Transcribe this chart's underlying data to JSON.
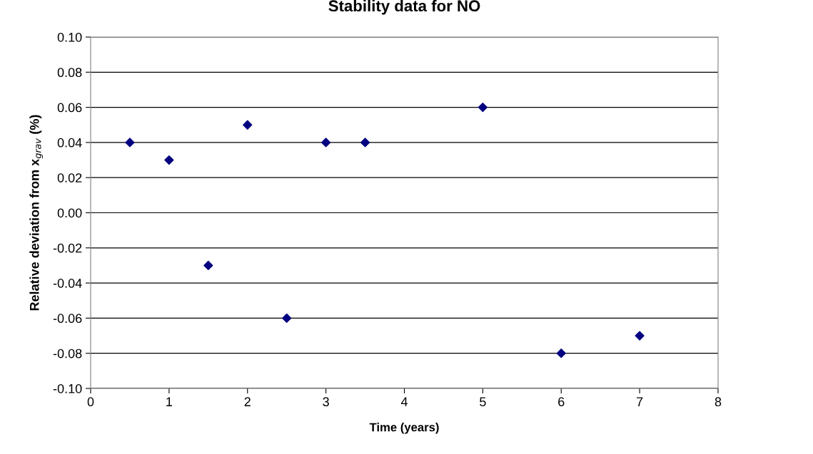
{
  "chart_data": {
    "type": "scatter",
    "title": "Stability data for NO",
    "xlabel": "Time (years)",
    "ylabel": "Relative deviation from x$_{grav}$ (%)",
    "x": [
      0.5,
      1,
      1.5,
      2,
      2.5,
      3,
      3.5,
      5,
      6,
      7
    ],
    "series": [
      {
        "color": "#000080",
        "values": [
          0.04,
          0.03,
          -0.03,
          0.05,
          -0.06,
          0.04,
          0.04,
          0.06,
          -0.08,
          -0.07
        ]
      }
    ],
    "xlim": [
      0,
      8
    ],
    "xticks": [
      0,
      1,
      2,
      3,
      4,
      5,
      6,
      7,
      8
    ],
    "ylim": [
      -0.1,
      0.1
    ],
    "yticks": [
      {
        "value": -0.1,
        "label": "-0.10"
      },
      {
        "value": -0.08,
        "label": "-0.08"
      },
      {
        "value": -0.06,
        "label": "-0.06"
      },
      {
        "value": -0.04,
        "label": "-0.04"
      },
      {
        "value": -0.02,
        "label": "-0.02"
      },
      {
        "value": 0,
        "label": "0.00"
      },
      {
        "value": 0.02,
        "label": "0.02"
      },
      {
        "value": 0.04,
        "label": "0.04"
      },
      {
        "value": 0.06,
        "label": "0.06"
      },
      {
        "value": 0.08,
        "label": "0.08"
      },
      {
        "value": 0.1,
        "label": "0.10"
      }
    ],
    "grid": "y",
    "marker": "diamond"
  }
}
